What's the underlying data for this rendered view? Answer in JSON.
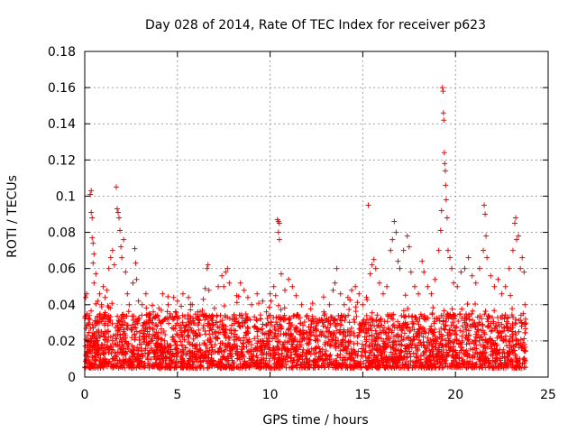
{
  "chart_data": {
    "type": "scatter",
    "title": "Day 028 of 2014, Rate Of TEC Index for receiver p623",
    "xlabel": "GPS time / hours",
    "ylabel": "ROTI / TECUs",
    "xlim": [
      0,
      25
    ],
    "ylim": [
      0,
      0.18
    ],
    "xticks": [
      0,
      5,
      10,
      15,
      20,
      25
    ],
    "xtick_labels": [
      "0",
      "5",
      "10",
      "15",
      "20",
      "25"
    ],
    "yticks": [
      0,
      0.02,
      0.04,
      0.06,
      0.08,
      0.1,
      0.12,
      0.14,
      0.16,
      0.18
    ],
    "ytick_labels": [
      "0",
      "0.02",
      "0.04",
      "0.06",
      "0.08",
      "0.1",
      "0.12",
      "0.14",
      "0.16",
      "0.18"
    ],
    "grid": true,
    "marker": "+",
    "marker_color": "#ff0000",
    "series": [
      {
        "name": "ROTI",
        "points": [
          [
            0.05,
            0.044
          ],
          [
            0.1,
            0.046
          ],
          [
            0.2,
            0.03
          ],
          [
            0.25,
            0.034
          ],
          [
            0.3,
            0.101
          ],
          [
            0.35,
            0.103
          ],
          [
            0.35,
            0.091
          ],
          [
            0.4,
            0.088
          ],
          [
            0.4,
            0.077
          ],
          [
            0.45,
            0.074
          ],
          [
            0.45,
            0.063
          ],
          [
            0.5,
            0.068
          ],
          [
            0.5,
            0.052
          ],
          [
            0.6,
            0.057
          ],
          [
            0.7,
            0.042
          ],
          [
            0.8,
            0.046
          ],
          [
            0.9,
            0.04
          ],
          [
            1.0,
            0.05
          ],
          [
            1.1,
            0.044
          ],
          [
            1.2,
            0.048
          ],
          [
            1.3,
            0.06
          ],
          [
            1.4,
            0.066
          ],
          [
            1.5,
            0.07
          ],
          [
            1.6,
            0.062
          ],
          [
            1.7,
            0.105
          ],
          [
            1.75,
            0.093
          ],
          [
            1.8,
            0.091
          ],
          [
            1.85,
            0.088
          ],
          [
            1.9,
            0.081
          ],
          [
            1.95,
            0.072
          ],
          [
            2.0,
            0.066
          ],
          [
            2.1,
            0.076
          ],
          [
            2.2,
            0.058
          ],
          [
            2.3,
            0.046
          ],
          [
            2.4,
            0.04
          ],
          [
            2.6,
            0.052
          ],
          [
            2.7,
            0.071
          ],
          [
            2.75,
            0.063
          ],
          [
            2.8,
            0.054
          ],
          [
            2.9,
            0.042
          ],
          [
            3.1,
            0.04
          ],
          [
            3.3,
            0.046
          ],
          [
            3.5,
            0.035
          ],
          [
            3.7,
            0.036
          ],
          [
            4.0,
            0.038
          ],
          [
            4.2,
            0.046
          ],
          [
            4.5,
            0.04
          ],
          [
            4.8,
            0.044
          ],
          [
            5.0,
            0.042
          ],
          [
            5.3,
            0.046
          ],
          [
            5.6,
            0.044
          ],
          [
            5.8,
            0.04
          ],
          [
            6.1,
            0.036
          ],
          [
            6.4,
            0.043
          ],
          [
            6.5,
            0.049
          ],
          [
            6.6,
            0.06
          ],
          [
            6.65,
            0.062
          ],
          [
            6.7,
            0.048
          ],
          [
            7.0,
            0.038
          ],
          [
            7.2,
            0.05
          ],
          [
            7.4,
            0.056
          ],
          [
            7.5,
            0.05
          ],
          [
            7.6,
            0.058
          ],
          [
            7.7,
            0.06
          ],
          [
            7.8,
            0.052
          ],
          [
            8.2,
            0.045
          ],
          [
            8.4,
            0.052
          ],
          [
            8.6,
            0.048
          ],
          [
            8.8,
            0.044
          ],
          [
            9.0,
            0.04
          ],
          [
            9.3,
            0.046
          ],
          [
            9.6,
            0.042
          ],
          [
            9.8,
            0.036
          ],
          [
            10.0,
            0.046
          ],
          [
            10.2,
            0.05
          ],
          [
            10.3,
            0.045
          ],
          [
            10.4,
            0.087
          ],
          [
            10.45,
            0.086
          ],
          [
            10.5,
            0.085
          ],
          [
            10.45,
            0.08
          ],
          [
            10.5,
            0.076
          ],
          [
            10.6,
            0.057
          ],
          [
            10.8,
            0.048
          ],
          [
            11.0,
            0.054
          ],
          [
            11.2,
            0.05
          ],
          [
            11.4,
            0.045
          ],
          [
            11.7,
            0.04
          ],
          [
            12.0,
            0.034
          ],
          [
            12.3,
            0.032
          ],
          [
            12.6,
            0.03
          ],
          [
            12.9,
            0.036
          ],
          [
            13.2,
            0.04
          ],
          [
            13.4,
            0.048
          ],
          [
            13.5,
            0.052
          ],
          [
            13.6,
            0.06
          ],
          [
            13.8,
            0.046
          ],
          [
            14.0,
            0.04
          ],
          [
            14.2,
            0.044
          ],
          [
            14.4,
            0.048
          ],
          [
            14.6,
            0.05
          ],
          [
            14.8,
            0.046
          ],
          [
            15.0,
            0.04
          ],
          [
            15.2,
            0.044
          ],
          [
            15.3,
            0.095
          ],
          [
            15.4,
            0.057
          ],
          [
            15.5,
            0.062
          ],
          [
            15.6,
            0.065
          ],
          [
            15.7,
            0.06
          ],
          [
            15.9,
            0.052
          ],
          [
            16.1,
            0.046
          ],
          [
            16.3,
            0.05
          ],
          [
            16.5,
            0.07
          ],
          [
            16.6,
            0.076
          ],
          [
            16.7,
            0.086
          ],
          [
            16.8,
            0.08
          ],
          [
            16.9,
            0.064
          ],
          [
            17.0,
            0.06
          ],
          [
            17.2,
            0.07
          ],
          [
            17.4,
            0.078
          ],
          [
            17.5,
            0.072
          ],
          [
            17.6,
            0.058
          ],
          [
            17.8,
            0.05
          ],
          [
            18.0,
            0.046
          ],
          [
            18.2,
            0.064
          ],
          [
            18.3,
            0.058
          ],
          [
            18.5,
            0.05
          ],
          [
            18.7,
            0.046
          ],
          [
            18.9,
            0.054
          ],
          [
            19.1,
            0.07
          ],
          [
            19.2,
            0.081
          ],
          [
            19.25,
            0.092
          ],
          [
            19.3,
            0.16
          ],
          [
            19.33,
            0.158
          ],
          [
            19.35,
            0.146
          ],
          [
            19.37,
            0.142
          ],
          [
            19.4,
            0.124
          ],
          [
            19.42,
            0.118
          ],
          [
            19.45,
            0.114
          ],
          [
            19.47,
            0.106
          ],
          [
            19.5,
            0.098
          ],
          [
            19.55,
            0.088
          ],
          [
            19.6,
            0.07
          ],
          [
            19.7,
            0.066
          ],
          [
            19.8,
            0.06
          ],
          [
            19.9,
            0.052
          ],
          [
            20.1,
            0.05
          ],
          [
            20.3,
            0.058
          ],
          [
            20.5,
            0.06
          ],
          [
            20.7,
            0.066
          ],
          [
            20.9,
            0.056
          ],
          [
            21.1,
            0.052
          ],
          [
            21.3,
            0.06
          ],
          [
            21.5,
            0.07
          ],
          [
            21.55,
            0.095
          ],
          [
            21.6,
            0.09
          ],
          [
            21.65,
            0.078
          ],
          [
            21.7,
            0.066
          ],
          [
            21.9,
            0.056
          ],
          [
            22.1,
            0.05
          ],
          [
            22.3,
            0.054
          ],
          [
            22.5,
            0.046
          ],
          [
            22.7,
            0.05
          ],
          [
            22.9,
            0.06
          ],
          [
            23.1,
            0.07
          ],
          [
            23.2,
            0.085
          ],
          [
            23.25,
            0.088
          ],
          [
            23.3,
            0.076
          ],
          [
            23.4,
            0.078
          ],
          [
            23.5,
            0.06
          ],
          [
            23.6,
            0.066
          ],
          [
            23.7,
            0.058
          ],
          [
            23.75,
            0.04
          ]
        ],
        "dense_band": {
          "x_range": [
            0,
            23.8
          ],
          "y_min": 0.005,
          "y_max_typical": 0.035,
          "description": "continuous dense band of points between ~0.005 and ~0.035 TECU across the whole day"
        }
      }
    ]
  },
  "colors": {
    "marker": "#ff0000",
    "grid": "#a0a0a0",
    "axis": "#000000",
    "background": "#ffffff"
  }
}
